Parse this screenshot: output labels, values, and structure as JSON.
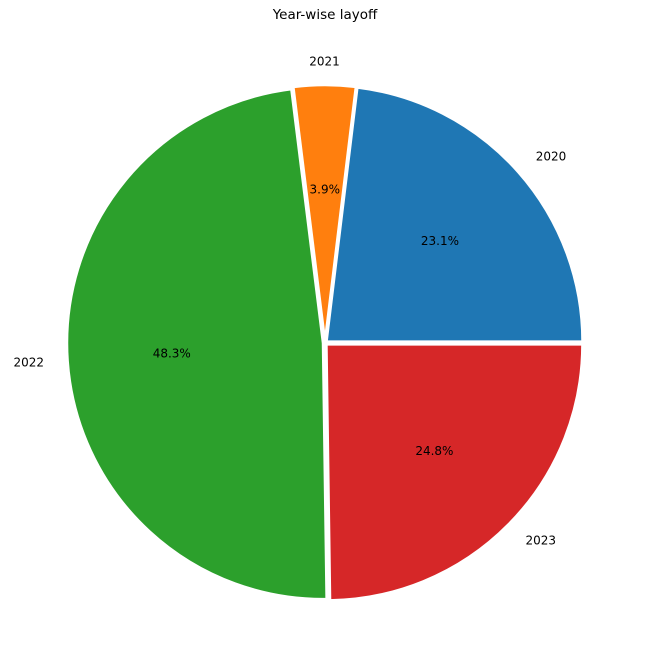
{
  "chart_data": {
    "type": "pie",
    "title": "Year-wise layoff",
    "categories": [
      "2020",
      "2021",
      "2022",
      "2023"
    ],
    "values": [
      23.1,
      3.9,
      48.3,
      24.8
    ],
    "percent_labels": [
      "23.1%",
      "3.9%",
      "48.3%",
      "24.8%"
    ],
    "colors": [
      "#1f77b4",
      "#ff7f0e",
      "#2ca02c",
      "#d62728"
    ],
    "slice_edge_color": "#ffffff",
    "start": "3 o'clock",
    "direction": "counterclockwise",
    "legend": "none"
  }
}
